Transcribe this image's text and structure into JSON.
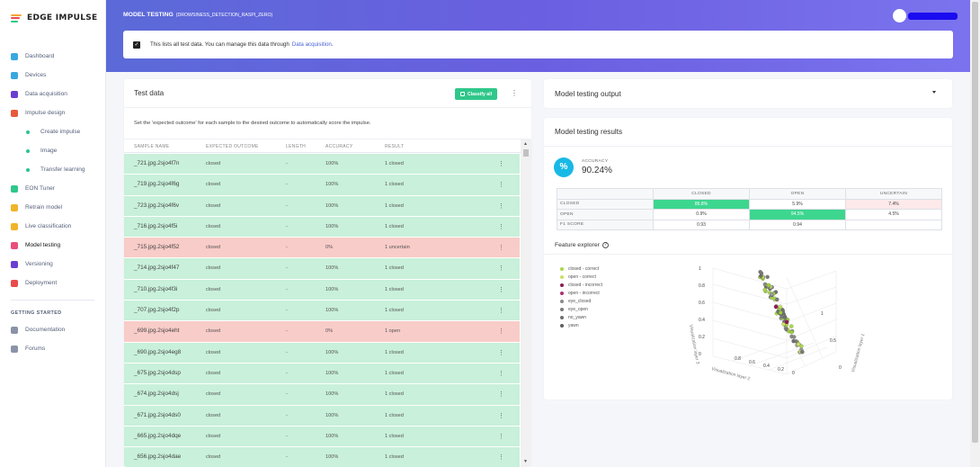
{
  "brand": {
    "name": "EDGE IMPULSE",
    "logo_colors": [
      "#f7a43a",
      "#e94c4c",
      "#2fc78a"
    ]
  },
  "sidebar": {
    "items": [
      {
        "label": "Dashboard",
        "icon": "monitor-icon",
        "color": "#3aa8e0"
      },
      {
        "label": "Devices",
        "icon": "device-icon",
        "color": "#3aa8e0"
      },
      {
        "label": "Data acquisition",
        "icon": "database-icon",
        "color": "#6a3fd0"
      },
      {
        "label": "Impulse design",
        "icon": "pulse-icon",
        "color": "#e85a3c"
      },
      {
        "label": "Create impulse",
        "sub": true
      },
      {
        "label": "Image",
        "sub": true
      },
      {
        "label": "Transfer learning",
        "sub": true
      },
      {
        "label": "EON Tuner",
        "icon": "eon-icon",
        "color": "#2fc78a"
      },
      {
        "label": "Retrain model",
        "icon": "retrain-icon",
        "color": "#f0b429"
      },
      {
        "label": "Live classification",
        "icon": "live-icon",
        "color": "#f0b429"
      },
      {
        "label": "Model testing",
        "icon": "test-icon",
        "color": "#e8507a",
        "active": true
      },
      {
        "label": "Versioning",
        "icon": "version-icon",
        "color": "#6a3fd0"
      },
      {
        "label": "Deployment",
        "icon": "deploy-icon",
        "color": "#e94c4c"
      }
    ],
    "getting_started_heading": "GETTING STARTED",
    "getting_started": [
      {
        "label": "Documentation",
        "icon": "book-icon"
      },
      {
        "label": "Forums",
        "icon": "forum-icon"
      }
    ]
  },
  "header": {
    "title": "MODEL TESTING",
    "project": "(DROWSINESS_DETECTION_RASPI_ZERO)"
  },
  "notice": {
    "text": "This lists all test data. You can manage this data through",
    "link": "Data acquisition",
    "suffix": "."
  },
  "test_data": {
    "title": "Test data",
    "classify_label": "Classify all",
    "description": "Set the 'expected outcome' for each sample to the desired outcome to automatically score the impulse.",
    "columns": [
      "SAMPLE NAME",
      "EXPECTED OUTCOME",
      "LENGTH",
      "ACCURACY",
      "RESULT"
    ],
    "rows": [
      {
        "name": "_721.jpg.2sjo4f7n",
        "expected": "closed",
        "length": "-",
        "accuracy": "100%",
        "result": "1 closed",
        "status": "ok"
      },
      {
        "name": "_719.jpg.2sjo4f6g",
        "expected": "closed",
        "length": "-",
        "accuracy": "100%",
        "result": "1 closed",
        "status": "ok"
      },
      {
        "name": "_723.jpg.2sjo4f6v",
        "expected": "closed",
        "length": "-",
        "accuracy": "100%",
        "result": "1 closed",
        "status": "ok"
      },
      {
        "name": "_716.jpg.2sjo4f5i",
        "expected": "closed",
        "length": "-",
        "accuracy": "100%",
        "result": "1 closed",
        "status": "ok"
      },
      {
        "name": "_715.jpg.2sjo4f52",
        "expected": "closed",
        "length": "-",
        "accuracy": "0%",
        "result": "1 uncertain",
        "status": "bad"
      },
      {
        "name": "_714.jpg.2sjo4f47",
        "expected": "closed",
        "length": "-",
        "accuracy": "100%",
        "result": "1 closed",
        "status": "ok"
      },
      {
        "name": "_710.jpg.2sjo4f3i",
        "expected": "closed",
        "length": "-",
        "accuracy": "100%",
        "result": "1 closed",
        "status": "ok"
      },
      {
        "name": "_707.jpg.2sjo4f2p",
        "expected": "closed",
        "length": "-",
        "accuracy": "100%",
        "result": "1 closed",
        "status": "ok"
      },
      {
        "name": "_699.jpg.2sjo4eht",
        "expected": "closed",
        "length": "-",
        "accuracy": "0%",
        "result": "1 open",
        "status": "bad"
      },
      {
        "name": "_690.jpg.2sjo4eg8",
        "expected": "closed",
        "length": "-",
        "accuracy": "100%",
        "result": "1 closed",
        "status": "ok"
      },
      {
        "name": "_675.jpg.2sjo4dsp",
        "expected": "closed",
        "length": "-",
        "accuracy": "100%",
        "result": "1 closed",
        "status": "ok"
      },
      {
        "name": "_674.jpg.2sjo4dsj",
        "expected": "closed",
        "length": "-",
        "accuracy": "100%",
        "result": "1 closed",
        "status": "ok"
      },
      {
        "name": "_671.jpg.2sjo4ds0",
        "expected": "closed",
        "length": "-",
        "accuracy": "100%",
        "result": "1 closed",
        "status": "ok"
      },
      {
        "name": "_665.jpg.2sjo4dqe",
        "expected": "closed",
        "length": "-",
        "accuracy": "100%",
        "result": "1 closed",
        "status": "ok"
      },
      {
        "name": "_656.jpg.2sjo4dae",
        "expected": "closed",
        "length": "-",
        "accuracy": "100%",
        "result": "1 closed",
        "status": "ok"
      }
    ]
  },
  "output": {
    "title": "Model testing output"
  },
  "results": {
    "title": "Model testing results",
    "accuracy_label": "ACCURACY",
    "accuracy_value": "90.24%",
    "matrix": {
      "columns": [
        "CLOSED",
        "OPEN",
        "UNCERTAIN"
      ],
      "rows": [
        {
          "label": "CLOSED",
          "values": [
            "86.8%",
            "5.9%",
            "7.4%"
          ]
        },
        {
          "label": "OPEN",
          "values": [
            "0.9%",
            "94.5%",
            "4.5%"
          ]
        },
        {
          "label": "F1 SCORE",
          "values": [
            "0.93",
            "0.94",
            ""
          ]
        }
      ]
    },
    "feature_explorer_title": "Feature explorer",
    "legend": [
      {
        "label": "closed - correct",
        "color": "#a8d84a"
      },
      {
        "label": "open - correct",
        "color": "#c9e064"
      },
      {
        "label": "closed - incorrect",
        "color": "#8b1d50"
      },
      {
        "label": "open - incorrect",
        "color": "#b03070"
      },
      {
        "label": "eye_closed",
        "color": "#8a8a8a"
      },
      {
        "label": "eye_open",
        "color": "#7a7a7a"
      },
      {
        "label": "no_yawn",
        "color": "#6e6e6e"
      },
      {
        "label": "yawn",
        "color": "#5f5f5f"
      }
    ],
    "plot": {
      "z_ticks": [
        "1",
        "0.8",
        "0.6",
        "0.4",
        "0.2",
        "0"
      ],
      "y_ticks": [
        "0",
        "0.5",
        "1"
      ],
      "x_ticks": [
        "0.8",
        "0.6",
        "0.4",
        "0.2",
        "0"
      ],
      "x_title": "Visualization layer 2",
      "y_title": "Visualization layer 1",
      "z_title": "Visualization layer 3"
    }
  }
}
